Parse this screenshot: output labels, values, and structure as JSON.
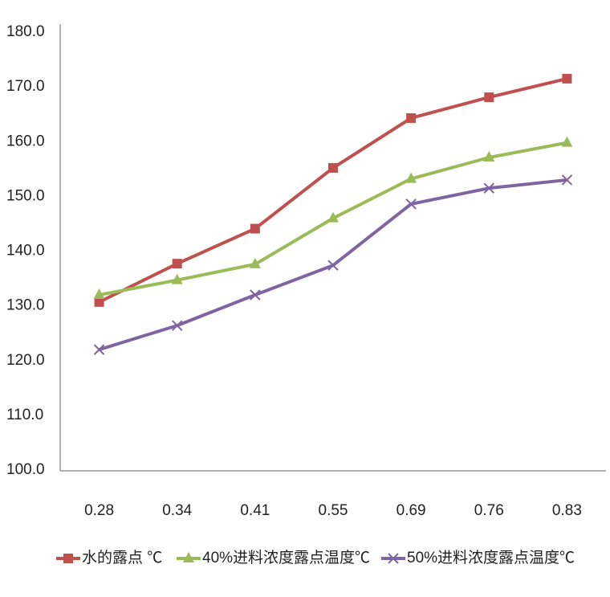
{
  "chart_data": {
    "type": "line",
    "categories": [
      "0.28",
      "0.34",
      "0.41",
      "0.55",
      "0.69",
      "0.76",
      "0.83"
    ],
    "series": [
      {
        "name": "水的露点 ℃",
        "color": "#c0504d",
        "marker": "square",
        "values": [
          130.7,
          137.7,
          144.1,
          155.2,
          164.3,
          168.1,
          171.5
        ]
      },
      {
        "name": "40%进料浓度露点温度℃",
        "color": "#9bbb59",
        "marker": "triangle",
        "values": [
          132.0,
          134.7,
          137.6,
          146.0,
          153.2,
          157.1,
          159.8
        ]
      },
      {
        "name": "50%进料浓度露点温度℃",
        "color": "#8064a2",
        "marker": "x",
        "values": [
          122.0,
          126.4,
          132.0,
          137.4,
          148.6,
          151.5,
          153.0
        ]
      }
    ],
    "ylim": [
      100,
      180
    ],
    "yticks": [
      {
        "value": 100,
        "label": "100.0"
      },
      {
        "value": 110,
        "label": "110.0"
      },
      {
        "value": 120,
        "label": "120.0"
      },
      {
        "value": 130,
        "label": "130.0"
      },
      {
        "value": 140,
        "label": "140.0"
      },
      {
        "value": 150,
        "label": "150.0"
      },
      {
        "value": 160,
        "label": "160.0"
      },
      {
        "value": 170,
        "label": "170.0"
      },
      {
        "value": 180,
        "label": "180.0"
      }
    ],
    "grid": false,
    "legend": "bottom"
  }
}
